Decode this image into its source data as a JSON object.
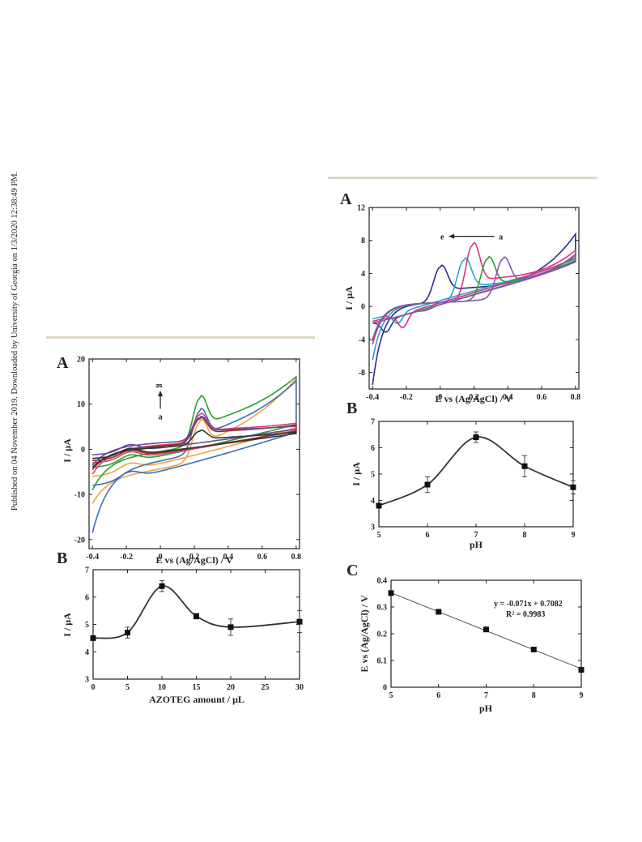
{
  "page": {
    "sidebar_text": "Published on 04 November 2019. Downloaded by University of Georgia on 1/3/2020 12:38:49 PM.",
    "rule_color": "#ddd7c0"
  },
  "chart_data": [
    {
      "id": "left-A",
      "panel": "A",
      "type": "line",
      "xlabel": "E vs (Ag/AgCl) / V",
      "ylabel": "I / μA",
      "xlim": [
        -0.42,
        0.82
      ],
      "ylim": [
        -22,
        20
      ],
      "xticks": [
        "-0.4",
        "-0.2",
        "0",
        "0.2",
        "0.4",
        "0.6",
        "0.8"
      ],
      "yticks": [
        "20",
        "10",
        "0",
        "-10",
        "-20"
      ],
      "annotation": {
        "from": "a",
        "to": "g"
      },
      "series": [
        {
          "color": "#f5a142",
          "peak_x": 0.23,
          "peak_y": 9.5,
          "end_hi": 15.5,
          "end_lo": 4.8,
          "start_hi": -6,
          "start_lo": -12,
          "flat_lo": -5.5
        },
        {
          "color": "#2ca02c",
          "peak_x": 0.23,
          "peak_y": 11.3,
          "end_hi": 15.5,
          "end_lo": 5.5,
          "start_hi": -4,
          "start_lo": -9,
          "flat_lo": -1.5
        },
        {
          "color": "#3a6fb8",
          "peak_x": 0.23,
          "peak_y": 10.3,
          "end_hi": 14.8,
          "end_lo": 3.8,
          "start_hi": -8,
          "start_lo": -18.5,
          "flat_lo": -3.5
        },
        {
          "color": "#e0406a",
          "peak_x": 0.23,
          "peak_y": 7.5,
          "end_hi": 6.2,
          "end_lo": 4.2,
          "start_hi": -3,
          "start_lo": -5.5,
          "flat_lo": 0.3
        },
        {
          "color": "#8a2b2b",
          "peak_x": 0.23,
          "peak_y": 6.8,
          "end_hi": 6.0,
          "end_lo": 4.0,
          "start_hi": -2.5,
          "start_lo": -4.5,
          "flat_lo": 0.1
        },
        {
          "color": "#6a4aa0",
          "peak_x": 0.23,
          "peak_y": 6.5,
          "end_hi": 5.8,
          "end_lo": 4.5,
          "start_hi": -1.2,
          "start_lo": -3.5,
          "flat_lo": 0.8
        },
        {
          "color": "#333333",
          "peak_x": 0.23,
          "peak_y": 4.5,
          "end_hi": 5.0,
          "end_lo": 3.5,
          "start_hi": -2,
          "start_lo": -4,
          "flat_lo": -0.2
        }
      ]
    },
    {
      "id": "left-B",
      "panel": "B",
      "type": "line",
      "xlabel": "AZOTEG amount  / μL",
      "ylabel": "I / μA",
      "xlim": [
        0,
        30
      ],
      "ylim": [
        3,
        7
      ],
      "xticks": [
        "0",
        "5",
        "10",
        "15",
        "20",
        "25",
        "30"
      ],
      "yticks": [
        "7",
        "6",
        "5",
        "4",
        "3"
      ],
      "x": [
        0,
        5,
        10,
        15,
        20,
        30
      ],
      "values": [
        4.5,
        4.7,
        6.4,
        5.3,
        4.9,
        5.1
      ],
      "errors": [
        0.0,
        0.2,
        0.2,
        0.1,
        0.3,
        0.4
      ]
    },
    {
      "id": "right-A",
      "panel": "A",
      "type": "line",
      "xlabel": "E vs (Ag/AgCl) / V",
      "ylabel": "I / μA",
      "xlim": [
        -0.42,
        0.82
      ],
      "ylim": [
        -10,
        12
      ],
      "xticks": [
        "-0.4",
        "-0.2",
        "0",
        "0.2",
        "0.4",
        "0.6",
        "0.8"
      ],
      "yticks": [
        "12",
        "8",
        "4",
        "0",
        "-4",
        "-8"
      ],
      "annotation": {
        "from": "a",
        "to": "e"
      },
      "series": [
        {
          "color": "#2a2f8a",
          "peak_x": 0.0,
          "peak_y": 5.8,
          "end_hi": 9.0,
          "end_lo": 5.5,
          "start_hi": -2,
          "start_lo": -9.5,
          "red_x": -0.32,
          "red_y": -4.5
        },
        {
          "color": "#2aa0d0",
          "peak_x": 0.14,
          "peak_y": 6.5,
          "end_hi": 6.3,
          "end_lo": 5.8,
          "start_hi": -1.5,
          "start_lo": -6.5,
          "red_x": -0.25,
          "red_y": -3.8
        },
        {
          "color": "#e0307a",
          "peak_x": 0.19,
          "peak_y": 8.2,
          "end_hi": 6.3,
          "end_lo": 5.9,
          "start_hi": -1.8,
          "start_lo": -4.6,
          "red_x": -0.22,
          "red_y": -4.5
        },
        {
          "color": "#2ca02c",
          "peak_x": 0.28,
          "peak_y": 6.4,
          "end_hi": 6.0,
          "end_lo": 5.6,
          "start_hi": -2,
          "start_lo": -4.0,
          "red_x": -0.15,
          "red_y": -3.0
        },
        {
          "color": "#8a52b8",
          "peak_x": 0.37,
          "peak_y": 6.1,
          "end_hi": 6.0,
          "end_lo": 5.4,
          "start_hi": -2,
          "start_lo": -4.2,
          "red_x": -0.08,
          "red_y": -3.2
        }
      ]
    },
    {
      "id": "right-B",
      "panel": "B",
      "type": "line",
      "xlabel": "pH",
      "ylabel": "I / μA",
      "xlim": [
        5,
        9
      ],
      "ylim": [
        3,
        7
      ],
      "xticks": [
        "5",
        "6",
        "7",
        "8",
        "9"
      ],
      "yticks": [
        "7",
        "6",
        "5",
        "4",
        "3"
      ],
      "x": [
        5,
        6,
        7,
        8,
        9
      ],
      "values": [
        3.8,
        4.6,
        6.4,
        5.3,
        4.5
      ],
      "errors": [
        0.05,
        0.3,
        0.2,
        0.4,
        0.25
      ]
    },
    {
      "id": "right-C",
      "panel": "C",
      "type": "scatter",
      "xlabel": "pH",
      "ylabel": "E vs (Ag/AgCl) / V",
      "xlim": [
        5,
        9
      ],
      "ylim": [
        0,
        0.4
      ],
      "xticks": [
        "5",
        "6",
        "7",
        "8",
        "9"
      ],
      "yticks": [
        "0.4",
        "0.3",
        "0.2",
        "0.1",
        "0"
      ],
      "x": [
        5,
        6,
        7,
        8,
        9
      ],
      "values": [
        0.352,
        0.282,
        0.216,
        0.141,
        0.065
      ],
      "fit": {
        "slope": -0.071,
        "intercept": 0.7082
      },
      "equation": "y = -0.071x + 0.7082",
      "r2": "R² = 0.9983"
    }
  ]
}
